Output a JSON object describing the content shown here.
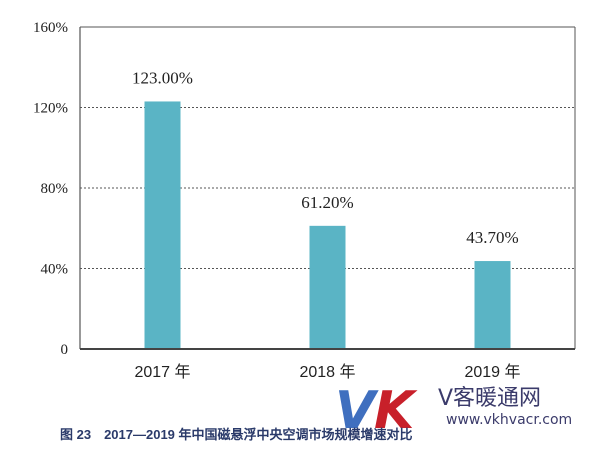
{
  "chart_data": {
    "type": "bar",
    "categories": [
      "2017 年",
      "2018 年",
      "2019 年"
    ],
    "values": [
      123.0,
      61.2,
      43.7
    ],
    "data_labels": [
      "123.00%",
      "61.20%",
      "43.70%"
    ],
    "ylim": [
      0,
      160
    ],
    "yticks": [
      0,
      40,
      80,
      120,
      160
    ],
    "ytick_labels": [
      "0",
      "40%",
      "80%",
      "120%",
      "160%"
    ],
    "grid": true,
    "bar_color": "#5ab4c5",
    "title": "",
    "xlabel": "",
    "ylabel": ""
  },
  "caption": "图 23　2017—2019 年中国磁悬浮中央空调市场规模增速对比",
  "watermark": {
    "logo": "VK",
    "name": "V客暖通网",
    "url": "www.vkhvacr.com",
    "colors": [
      "#3f6fbf",
      "#c8202a"
    ]
  }
}
